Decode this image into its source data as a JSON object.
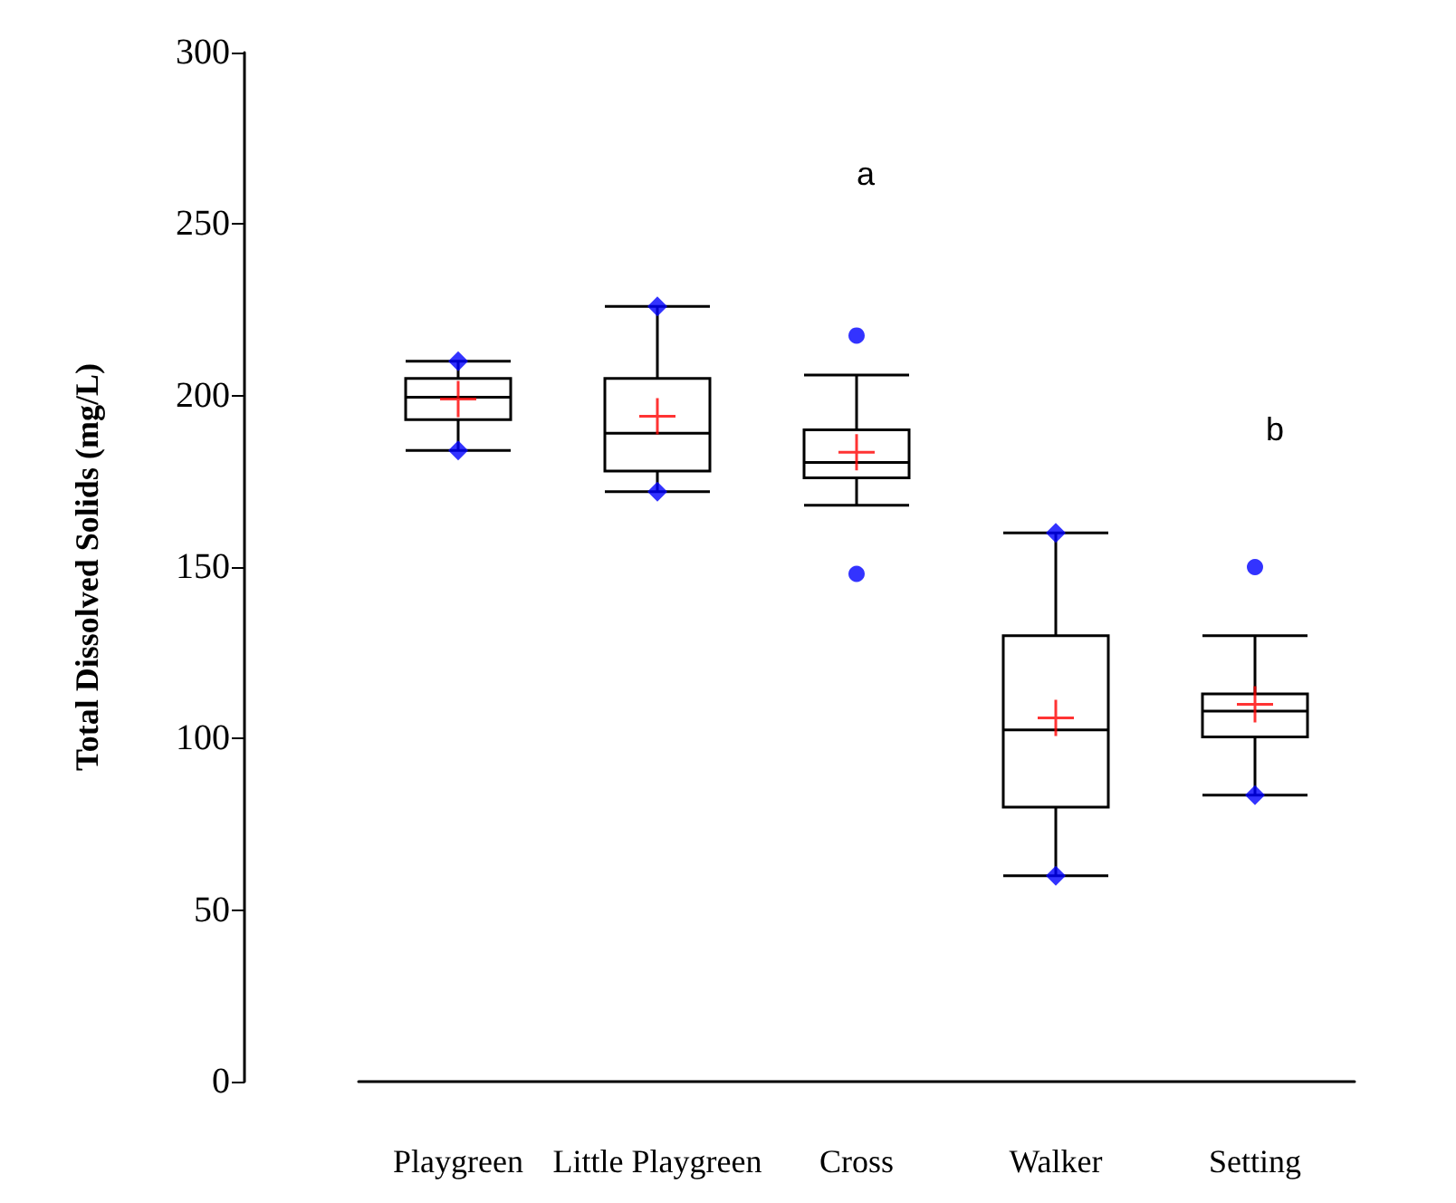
{
  "chart_data": {
    "type": "box",
    "ylabel": "Total Dissolved Solids (mg/L)",
    "categories": [
      "Playgreen",
      "Little Playgreen",
      "Cross",
      "Walker",
      "Setting"
    ],
    "ylim": [
      0,
      300
    ],
    "yticks": [
      0,
      50,
      100,
      150,
      200,
      250,
      300
    ],
    "grid": false,
    "annotations": [
      "a",
      "b"
    ],
    "series": [
      {
        "color": "#000000",
        "boxes": [
          {
            "low": 184,
            "q1": 193,
            "median": 199.5,
            "q3": 205,
            "high": 210,
            "mean": 199
          },
          {
            "low": 172,
            "q1": 178,
            "median": 189,
            "q3": 205,
            "high": 226,
            "mean": 194
          },
          {
            "low": 168,
            "q1": 176,
            "median": 180.5,
            "q3": 190,
            "high": 206,
            "mean": 183.5,
            "outliers": [
              217.5,
              148
            ]
          },
          {
            "low": 60,
            "q1": 80,
            "median": 102.5,
            "q3": 130,
            "high": 160,
            "mean": 106
          },
          {
            "low": 83.5,
            "q1": 100.5,
            "median": 108,
            "q3": 113,
            "high": 130,
            "mean": 110,
            "outliers": [
              150
            ]
          }
        ]
      },
      {
        "type": "scatter",
        "marker": "diamond",
        "color": "#0000ff",
        "x": [
          "Playgreen",
          "Playgreen",
          "Little Playgreen",
          "Little Playgreen",
          "Walker",
          "Walker",
          "Setting"
        ],
        "values": [
          210,
          184,
          226,
          172,
          160,
          60,
          83.5
        ]
      }
    ]
  }
}
